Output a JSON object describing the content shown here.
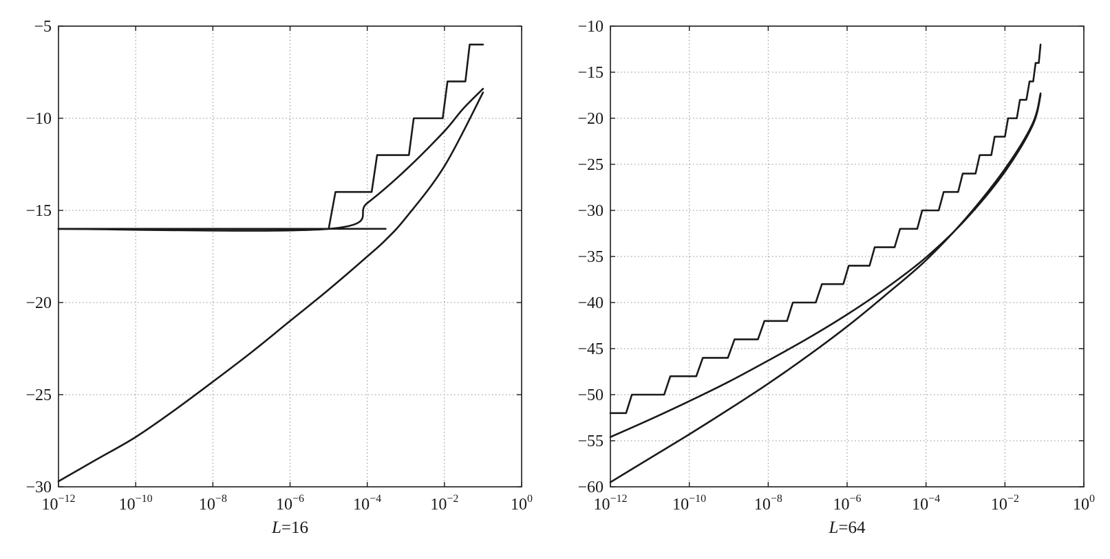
{
  "chart_data": [
    {
      "type": "line",
      "title": "",
      "xlabel_italic": "L",
      "xlabel_rest": "=16",
      "xscale": "log",
      "xlim": [
        1e-12,
        1
      ],
      "ylim": [
        -30,
        -5
      ],
      "grid": true,
      "legend": "none",
      "x_ticks": [
        {
          "base": "10",
          "exp": "−12"
        },
        {
          "base": "10",
          "exp": "−10"
        },
        {
          "base": "10",
          "exp": "−8"
        },
        {
          "base": "10",
          "exp": "−6"
        },
        {
          "base": "10",
          "exp": "−4"
        },
        {
          "base": "10",
          "exp": "−2"
        },
        {
          "base": "10",
          "exp": "0"
        }
      ],
      "y_ticks": [
        "−5",
        "−10",
        "−15",
        "−20",
        "−25",
        "−30"
      ],
      "series": [
        {
          "style": "staircase",
          "x": [
            1e-12,
            1e-05,
            1.5e-05,
            0.00013,
            0.00018,
            0.0012,
            0.0016,
            0.009,
            0.012,
            0.035,
            0.045,
            0.1
          ],
          "y": [
            -16,
            -16,
            -14,
            -14,
            -12,
            -12,
            -10,
            -10,
            -8,
            -8,
            -6,
            -6
          ]
        },
        {
          "style": "curve",
          "x": [
            1e-12,
            1e-05,
            0.0001,
            0.001,
            0.01,
            0.03,
            0.1
          ],
          "y": [
            -16,
            -16,
            -14.6,
            -12.8,
            -10.7,
            -9.5,
            -8.4
          ]
        },
        {
          "style": "curve",
          "x": [
            1e-12,
            1e-11,
            1e-10,
            1e-09,
            1e-08,
            1e-07,
            1e-06,
            1e-05,
            0.0001,
            0.0003,
            0.001,
            0.01,
            0.1
          ],
          "y": [
            -29.7,
            -28.5,
            -27.3,
            -25.85,
            -24.3,
            -22.7,
            -21.0,
            -19.3,
            -17.5,
            -16.6,
            -15.4,
            -12.6,
            -8.6
          ]
        },
        {
          "style": "curve",
          "x": [
            1e-12,
            0.0003
          ],
          "y": [
            -16,
            -16
          ]
        }
      ]
    },
    {
      "type": "line",
      "title": "",
      "xlabel_italic": "L",
      "xlabel_rest": "=64",
      "xscale": "log",
      "xlim": [
        1e-12,
        1
      ],
      "ylim": [
        -60,
        -10
      ],
      "grid": true,
      "legend": "none",
      "x_ticks": [
        {
          "base": "10",
          "exp": "−12"
        },
        {
          "base": "10",
          "exp": "−10"
        },
        {
          "base": "10",
          "exp": "−8"
        },
        {
          "base": "10",
          "exp": "−6"
        },
        {
          "base": "10",
          "exp": "−4"
        },
        {
          "base": "10",
          "exp": "−2"
        },
        {
          "base": "10",
          "exp": "0"
        }
      ],
      "y_ticks": [
        "−10",
        "−15",
        "−20",
        "−25",
        "−30",
        "−35",
        "−40",
        "−45",
        "−50",
        "−55",
        "−60"
      ],
      "series": [
        {
          "style": "staircase",
          "x": [
            1e-12,
            2.5e-12,
            3.5e-12,
            2.3e-11,
            3.3e-11,
            1.5e-10,
            2.2e-10,
            9.5e-10,
            1.4e-09,
            5.5e-09,
            8e-09,
            3e-08,
            4.2e-08,
            1.6e-07,
            2.3e-07,
            8e-07,
            1.1e-06,
            3.7e-06,
            5e-06,
            1.6e-05,
            2.2e-05,
            6e-05,
            8e-05,
            0.00021,
            0.00028,
            0.00065,
            0.00085,
            0.0018,
            0.0023,
            0.0045,
            0.0055,
            0.01,
            0.012,
            0.02,
            0.024,
            0.035,
            0.042,
            0.052,
            0.06,
            0.072,
            0.08
          ],
          "y": [
            -52,
            -52,
            -50,
            -50,
            -48,
            -48,
            -46,
            -46,
            -44,
            -44,
            -42,
            -42,
            -40,
            -40,
            -38,
            -38,
            -36,
            -36,
            -34,
            -34,
            -32,
            -32,
            -30,
            -30,
            -28,
            -28,
            -26,
            -26,
            -24,
            -24,
            -22,
            -22,
            -20,
            -20,
            -18,
            -18,
            -16,
            -16,
            -14,
            -14,
            -12
          ]
        },
        {
          "style": "curve",
          "x": [
            1e-12,
            1e-11,
            1e-10,
            1e-09,
            1e-08,
            1e-07,
            1e-06,
            1e-05,
            0.0001,
            0.001,
            0.01,
            0.05,
            0.08
          ],
          "y": [
            -54.6,
            -52.7,
            -50.7,
            -48.6,
            -46.3,
            -43.9,
            -41.3,
            -38.4,
            -35.1,
            -31.0,
            -25.8,
            -20.8,
            -17.5
          ]
        },
        {
          "style": "curve",
          "x": [
            1e-12,
            1e-11,
            1e-10,
            1e-09,
            1e-08,
            1e-07,
            1e-06,
            1e-05,
            0.0001,
            0.001,
            0.01,
            0.05,
            0.08
          ],
          "y": [
            -59.5,
            -56.9,
            -54.3,
            -51.6,
            -48.8,
            -45.8,
            -42.6,
            -39.1,
            -35.4,
            -30.9,
            -25.5,
            -20.6,
            -17.3
          ]
        }
      ]
    }
  ]
}
